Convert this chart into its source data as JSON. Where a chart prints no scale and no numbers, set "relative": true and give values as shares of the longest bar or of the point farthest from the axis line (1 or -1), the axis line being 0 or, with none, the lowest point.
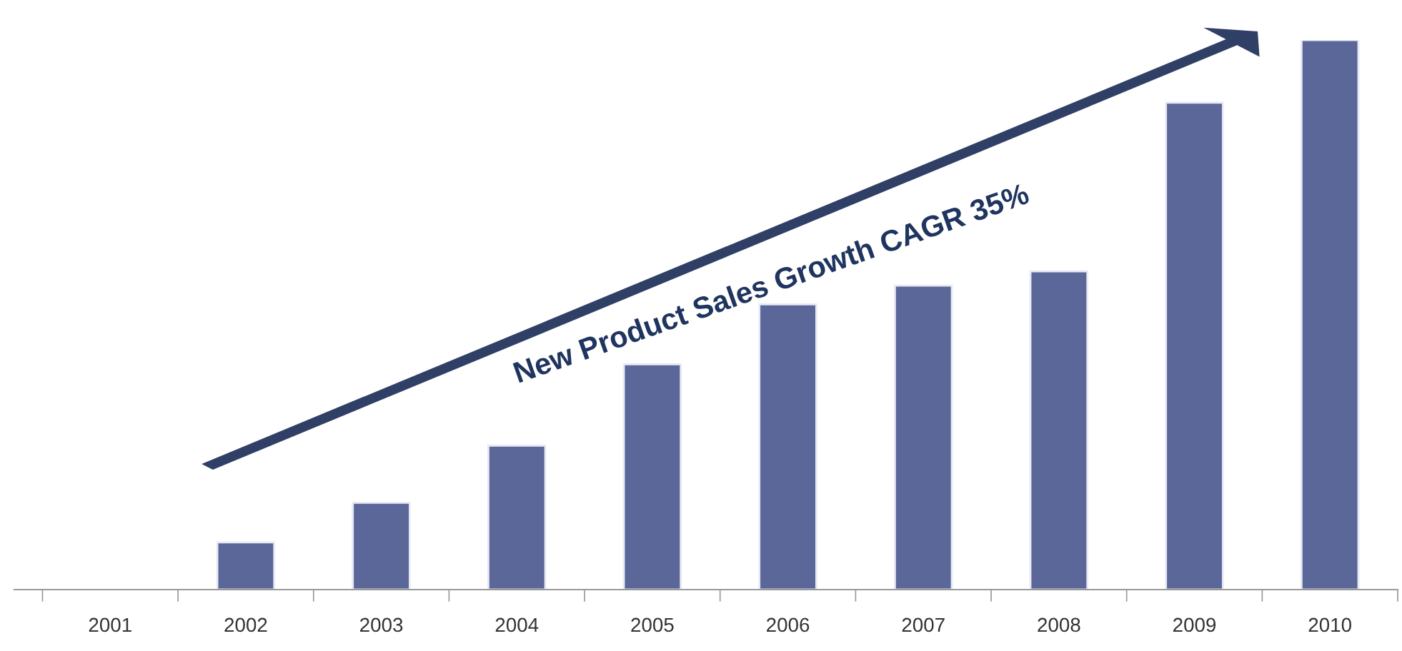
{
  "chart_data": {
    "type": "bar",
    "relative": true,
    "categories": [
      "2001",
      "2002",
      "2003",
      "2004",
      "2005",
      "2006",
      "2007",
      "2008",
      "2009",
      "2010"
    ],
    "values": [
      null,
      0.086,
      0.158,
      0.262,
      0.41,
      0.519,
      0.553,
      0.579,
      0.886,
      1
    ],
    "color": "#5b6699",
    "annotations": [
      "New Product Sales Growth CAGR 35%"
    ],
    "grid": false,
    "legend": false
  }
}
